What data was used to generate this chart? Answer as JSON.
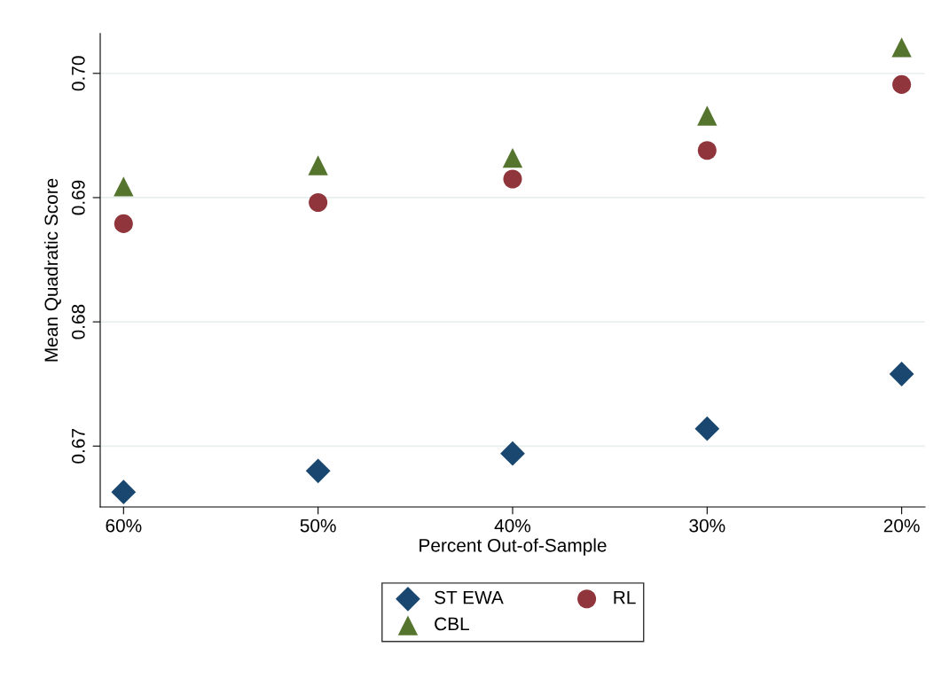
{
  "chart_data": {
    "type": "scatter",
    "xlabel": "Percent Out-of-Sample",
    "ylabel": "Mean Quadratic Score",
    "categories": [
      "60%",
      "50%",
      "40%",
      "30%",
      "20%"
    ],
    "series": [
      {
        "name": "ST EWA",
        "color": "#1a476f",
        "marker": "diamond",
        "values": [
          0.6663,
          0.668,
          0.6694,
          0.6714,
          0.6758
        ]
      },
      {
        "name": "RL",
        "color": "#90353b",
        "marker": "circle",
        "values": [
          0.6879,
          0.6896,
          0.6915,
          0.6938,
          0.6991
        ]
      },
      {
        "name": "CBL",
        "color": "#55752f",
        "marker": "triangle",
        "values": [
          0.6909,
          0.6926,
          0.6932,
          0.6966,
          0.7021
        ]
      }
    ],
    "ylim": [
      0.6651,
      0.7032
    ],
    "yticks": [
      {
        "value": 0.67,
        "label": "0.67"
      },
      {
        "value": 0.68,
        "label": "0.68"
      },
      {
        "value": 0.69,
        "label": "0.69"
      },
      {
        "value": 0.7,
        "label": "0.70"
      }
    ],
    "grid": "y",
    "legend": "bottom"
  }
}
